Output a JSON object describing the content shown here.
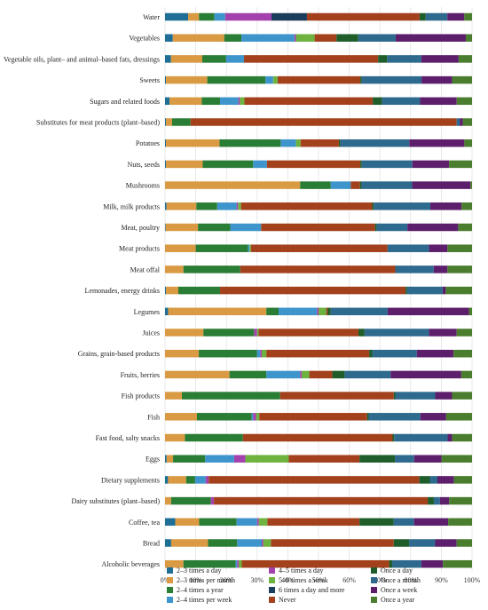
{
  "chart_data": {
    "type": "bar",
    "orientation": "horizontal",
    "stacked": true,
    "normalized": true,
    "xlim": [
      0,
      100
    ],
    "x_ticks": [
      "0%",
      "10%",
      "20%",
      "30%",
      "40%",
      "50%",
      "60%",
      "70%",
      "80%",
      "90%",
      "100%"
    ],
    "grid": true,
    "legend_position": "bottom",
    "categories": [
      "Water",
      "Vegetables",
      "Vegetable oils, plant– and animal–based fats, dressings",
      "Sweets",
      "Sugars and related foods",
      "Substitutes for meat products (plant–based)",
      "Potatoes",
      "Nuts, seeds",
      "Mushrooms",
      "Milk, milk products",
      "Meat, poultry",
      "Meat products",
      "Meat offal",
      "Lemonades, energy drinks",
      "Legumes",
      "Juices",
      "Grains, grain-based products",
      "Fruits, berries",
      "Fish products",
      "Fish",
      "Fast food, salty snacks",
      "Eggs",
      "Dietary supplements",
      "Dairy substitutes (plant–based)",
      "Coffee, tea",
      "Bread",
      "Alcoholic beverages"
    ],
    "series": [
      {
        "name": "2–3 times a day",
        "color": "#1f6e96",
        "values": [
          7.5,
          2.5,
          2.0,
          0.3,
          1.5,
          0.3,
          0.3,
          0.3,
          0.0,
          0.5,
          0.2,
          0.0,
          0.0,
          0.3,
          1.0,
          0.0,
          0.0,
          0.0,
          0.0,
          0.0,
          0.0,
          0.5,
          1.0,
          0.0,
          3.0,
          2.0,
          0.0
        ]
      },
      {
        "name": "2–3 times per month",
        "color": "#d99a43",
        "values": [
          3.5,
          16.5,
          10.5,
          13.5,
          10.5,
          2.0,
          17.5,
          12.0,
          44.0,
          10.0,
          10.5,
          10.0,
          6.0,
          4.0,
          32.0,
          12.5,
          11.0,
          21.0,
          5.5,
          10.5,
          6.5,
          2.0,
          6.0,
          2.0,
          7.0,
          12.0,
          6.0
        ]
      },
      {
        "name": "2–4 times a year",
        "color": "#2a7d35",
        "values": [
          5.0,
          5.5,
          8.0,
          19.0,
          6.0,
          6.0,
          20.0,
          16.5,
          10.0,
          7.0,
          10.5,
          17.0,
          18.5,
          13.5,
          4.0,
          16.5,
          19.0,
          12.0,
          32.0,
          18.0,
          19.0,
          10.0,
          3.0,
          13.0,
          11.0,
          9.5,
          17.0
        ]
      },
      {
        "name": "2–4 times per week",
        "color": "#3e95cc",
        "values": [
          3.5,
          17.0,
          6.0,
          2.5,
          6.0,
          0.0,
          5.0,
          4.5,
          6.5,
          6.5,
          10.0,
          0.5,
          0.0,
          0.0,
          12.5,
          0.0,
          1.0,
          11.0,
          0.0,
          0.5,
          0.0,
          9.0,
          3.5,
          0.0,
          6.0,
          8.0,
          0.5
        ]
      },
      {
        "name": "4–5 times a day",
        "color": "#a341ad",
        "values": [
          15.0,
          0.5,
          0.0,
          0.0,
          0.5,
          0.0,
          0.0,
          0.0,
          0.0,
          0.5,
          0.0,
          0.0,
          0.0,
          0.0,
          0.5,
          1.0,
          0.5,
          0.5,
          0.0,
          1.0,
          0.0,
          3.5,
          1.0,
          1.0,
          0.5,
          0.5,
          0.5
        ]
      },
      {
        "name": "5–6 times a week",
        "color": "#6eb33f",
        "values": [
          0.0,
          6.0,
          0.0,
          1.5,
          1.5,
          0.0,
          1.5,
          0.0,
          0.0,
          1.0,
          0.0,
          0.5,
          0.0,
          0.0,
          2.5,
          0.5,
          1.5,
          2.5,
          0.0,
          1.0,
          0.0,
          13.5,
          0.0,
          0.0,
          2.5,
          2.5,
          1.0
        ]
      },
      {
        "name": "6 times a day and more",
        "color": "#1b3d5c",
        "values": [
          11.5,
          0.0,
          0.0,
          0.0,
          0.0,
          0.0,
          0.0,
          0.0,
          0.0,
          0.0,
          0.0,
          0.0,
          0.0,
          0.0,
          0.0,
          0.0,
          0.0,
          0.0,
          0.0,
          0.0,
          0.0,
          0.0,
          0.0,
          0.0,
          0.0,
          0.0,
          0.0
        ]
      },
      {
        "name": "Never",
        "color": "#a3411d",
        "values": [
          36.5,
          7.0,
          45.0,
          27.0,
          42.0,
          86.5,
          12.5,
          30.5,
          3.0,
          44.0,
          37.0,
          44.5,
          50.5,
          60.0,
          0.5,
          32.5,
          33.5,
          7.5,
          37.0,
          35.5,
          49.0,
          22.0,
          70.0,
          70.0,
          27.0,
          40.0,
          48.0
        ]
      },
      {
        "name": "Once a day",
        "color": "#1f5e2a",
        "values": [
          2.0,
          7.0,
          3.0,
          0.5,
          3.0,
          0.0,
          0.5,
          0.5,
          0.5,
          0.5,
          0.5,
          0.0,
          0.0,
          0.5,
          1.0,
          2.0,
          1.0,
          4.0,
          0.5,
          0.5,
          0.5,
          11.0,
          3.5,
          2.0,
          10.0,
          5.0,
          1.0
        ]
      },
      {
        "name": "Once a month",
        "color": "#2e6a8e",
        "values": [
          7.0,
          12.0,
          11.5,
          19.5,
          12.5,
          1.0,
          22.5,
          16.5,
          16.5,
          19.0,
          10.0,
          13.5,
          12.5,
          11.5,
          18.5,
          21.0,
          14.5,
          15.0,
          13.0,
          17.0,
          17.5,
          6.0,
          2.5,
          2.0,
          6.0,
          8.5,
          9.5
        ]
      },
      {
        "name": "Once a week",
        "color": "#5d1f6b",
        "values": [
          5.5,
          22.5,
          12.5,
          10.0,
          12.0,
          1.0,
          18.0,
          12.0,
          19.0,
          10.5,
          16.5,
          6.0,
          4.5,
          1.0,
          26.5,
          9.0,
          12.0,
          23.0,
          5.5,
          8.5,
          1.5,
          8.5,
          5.5,
          3.0,
          10.0,
          7.0,
          7.0
        ]
      },
      {
        "name": "Once a year",
        "color": "#4a7d2d",
        "values": [
          2.5,
          2.0,
          4.5,
          6.5,
          5.0,
          3.0,
          2.5,
          7.5,
          0.5,
          3.5,
          4.5,
          8.0,
          8.0,
          8.5,
          1.0,
          5.0,
          6.0,
          3.5,
          6.5,
          8.5,
          6.5,
          9.5,
          6.0,
          7.5,
          7.0,
          5.0,
          9.5
        ]
      }
    ]
  }
}
